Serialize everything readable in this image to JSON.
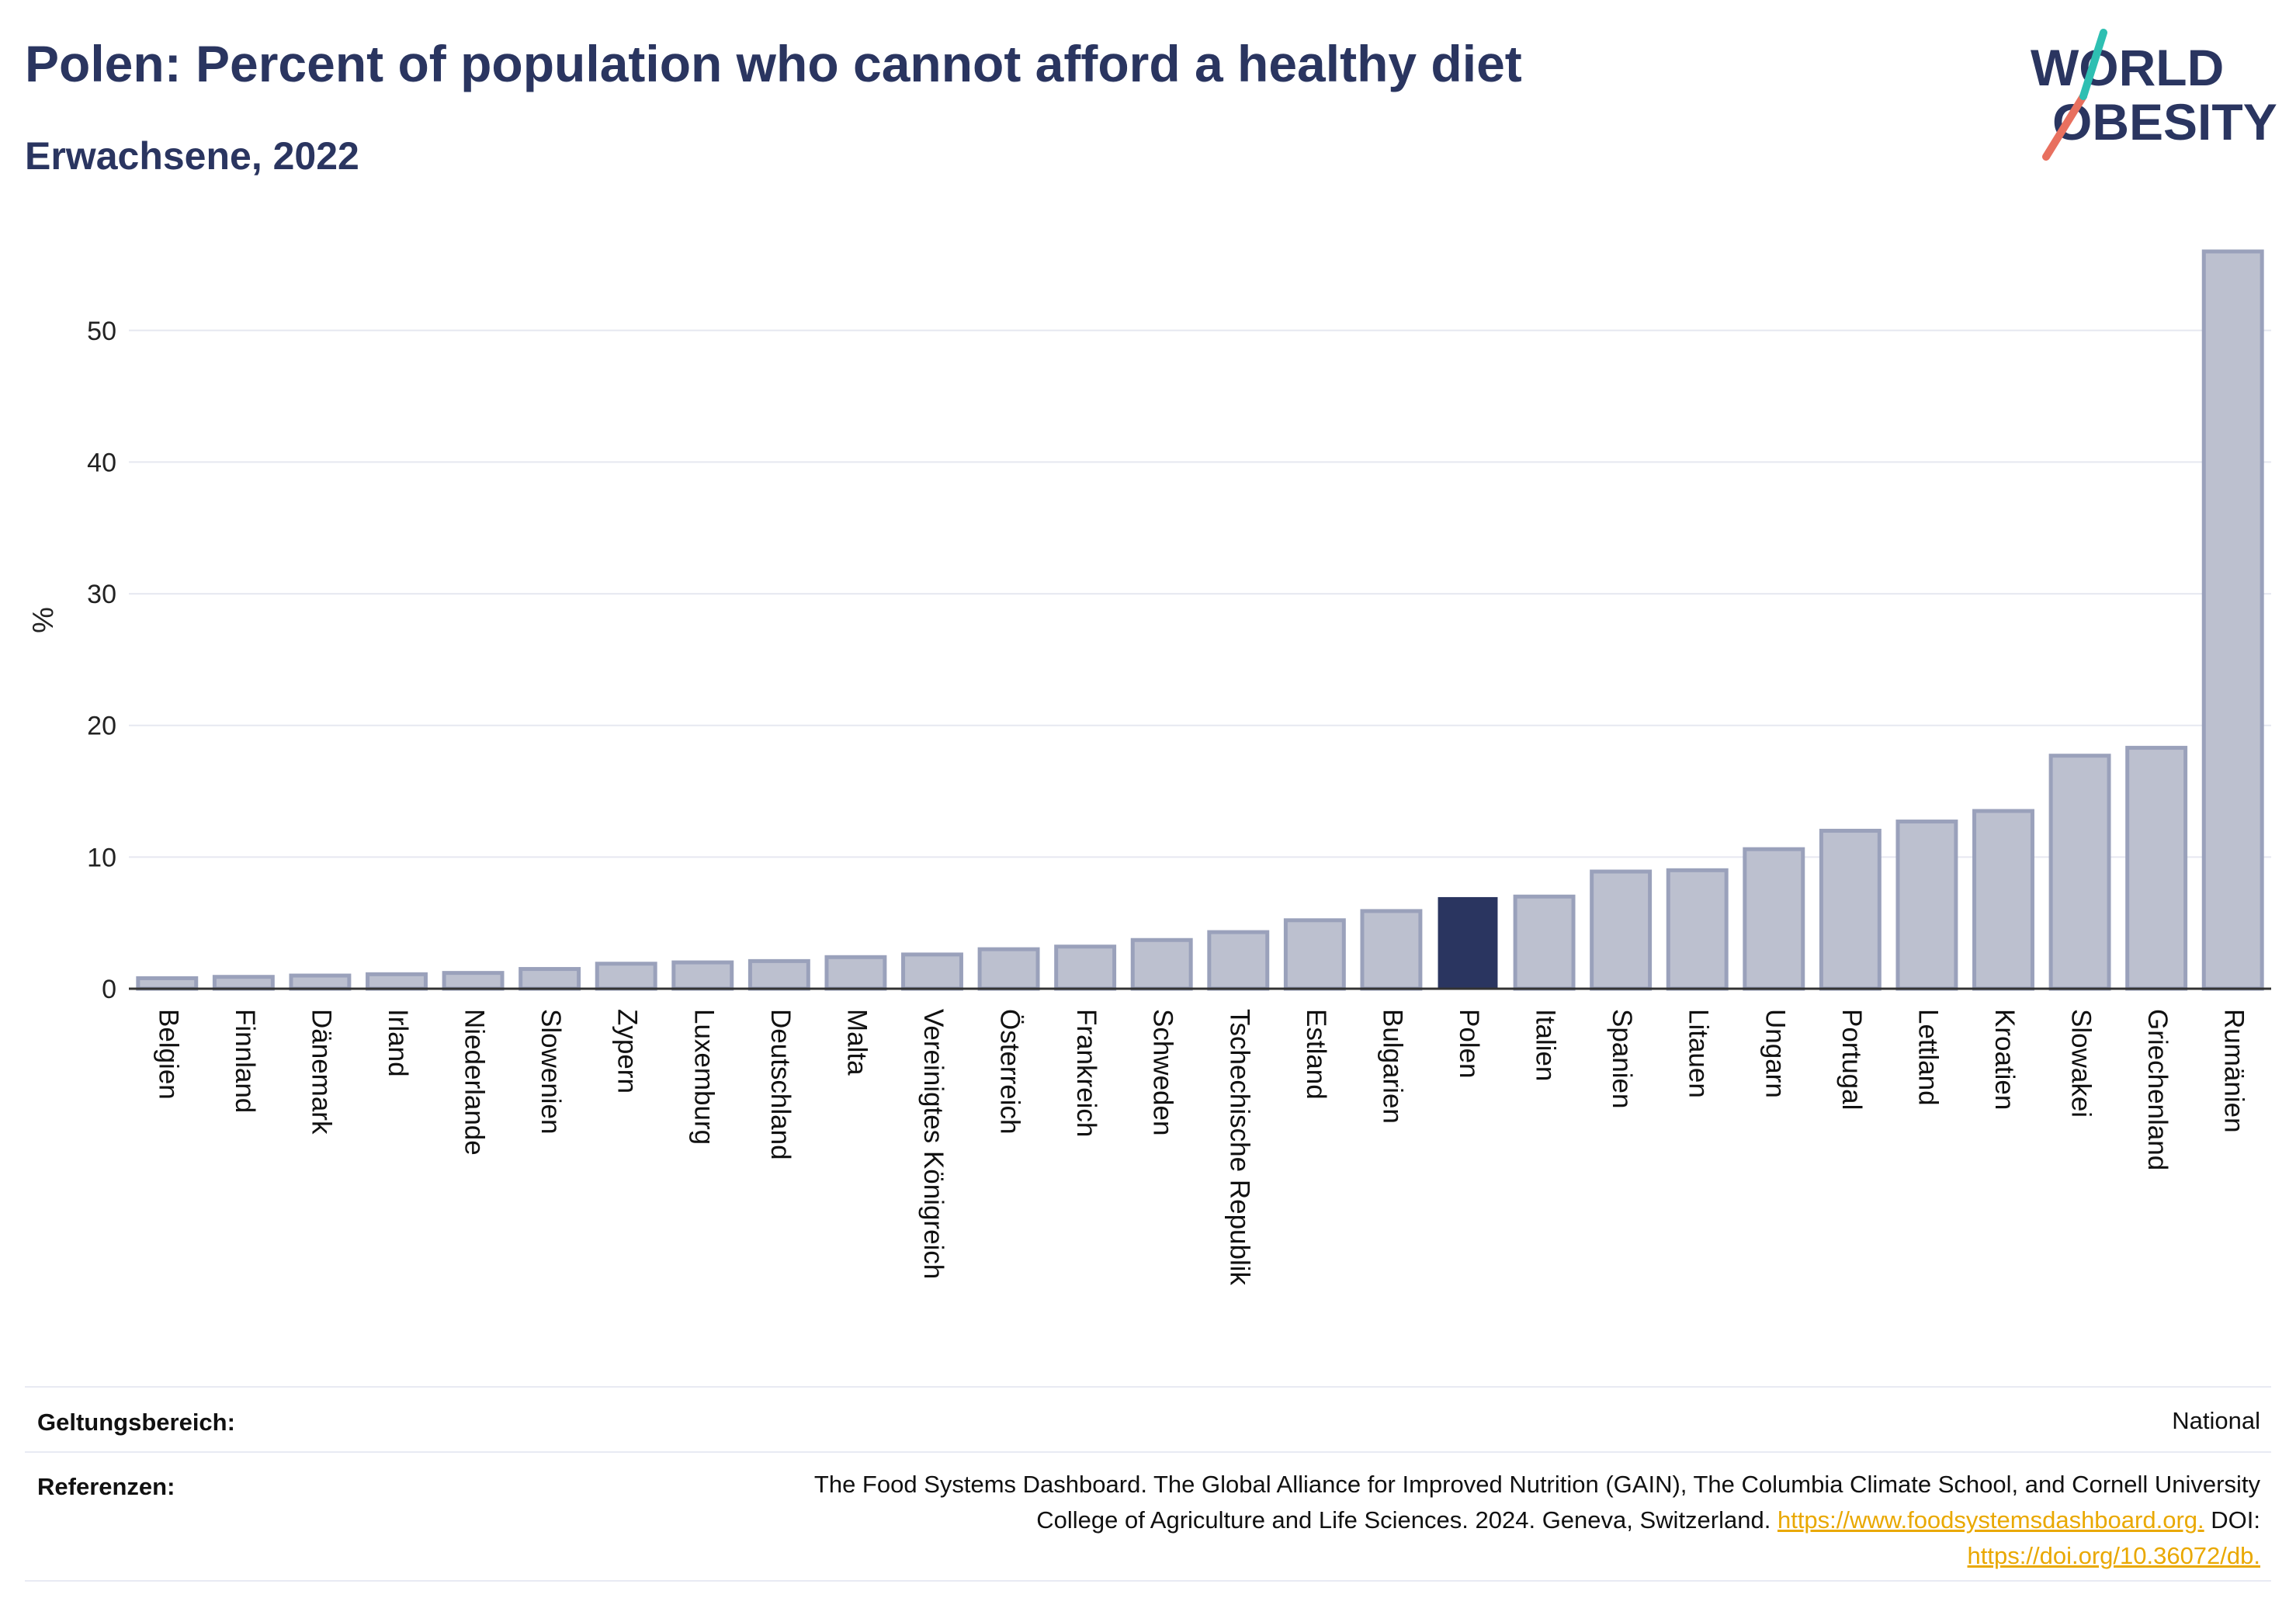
{
  "header": {
    "title": "Polen: Percent of population who cannot afford a healthy diet",
    "subtitle": "Erwachsene, 2022"
  },
  "logo": {
    "line1": "WORLD",
    "line2": "OBESITY"
  },
  "colors": {
    "bar": "#bcc0cf",
    "bar_border": "#9aa1bb",
    "highlight": "#2a3560",
    "grid": "#e6e8f0",
    "axis": "#333333",
    "link": "#e9a800"
  },
  "chart_data": {
    "type": "bar",
    "ylabel": "%",
    "ylim": [
      0,
      56
    ],
    "yticks": [
      0,
      10,
      20,
      30,
      40,
      50
    ],
    "grid": true,
    "highlight": "Polen",
    "categories": [
      "Belgien",
      "Finnland",
      "Dänemark",
      "Irland",
      "Niederlande",
      "Slowenien",
      "Zypern",
      "Luxemburg",
      "Deutschland",
      "Malta",
      "Vereinigtes Königreich",
      "Österreich",
      "Frankreich",
      "Schweden",
      "Tschechische Republik",
      "Estland",
      "Bulgarien",
      "Polen",
      "Italien",
      "Spanien",
      "Litauen",
      "Ungarn",
      "Portugal",
      "Lettland",
      "Kroatien",
      "Slowakei",
      "Griechenland",
      "Rumänien"
    ],
    "values": [
      0.8,
      0.9,
      1.0,
      1.1,
      1.2,
      1.5,
      1.9,
      2.0,
      2.1,
      2.4,
      2.6,
      3.0,
      3.2,
      3.7,
      4.3,
      5.2,
      5.9,
      6.9,
      7.0,
      8.9,
      9.0,
      10.6,
      12.0,
      12.7,
      13.5,
      17.7,
      18.3,
      56.0
    ]
  },
  "footer": {
    "scope_label": "Geltungsbereich:",
    "scope_value": "National",
    "ref_label": "Referenzen:",
    "ref_line1": "The Food Systems Dashboard. The Global Alliance for Improved Nutrition (GAIN), The Columbia Climate School, and Cornell University",
    "ref_line2_text": "College of Agriculture and Life Sciences. 2024. Geneva, Switzerland.",
    "ref_link1": "https://www.foodsystemsdashboard.org.",
    "ref_doi": "DOI:",
    "ref_link2": "https://doi.org/10.36072/db."
  }
}
